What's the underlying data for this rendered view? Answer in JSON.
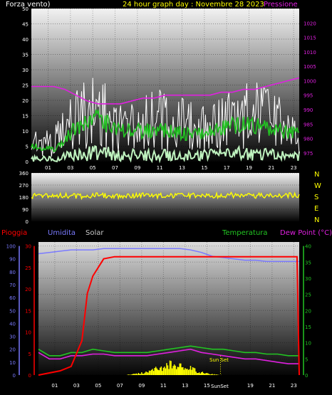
{
  "header": {
    "wind_label": "Forza vento)",
    "title": "24 hour graph day : Novembre 28 2023",
    "pressure_label": "Pressione"
  },
  "colors": {
    "wind_gust": "#ffffff",
    "wind_avg": "#22c522",
    "wind_min": "#bff3bf",
    "pressure": "#e020e0",
    "direction": "#ffff00",
    "rain": "#ff0000",
    "humidity": "#7a7aff",
    "solar": "#ffff00",
    "temperature": "#22c522",
    "dew_point": "#e020e0",
    "title": "#ffff00",
    "axis_text": "#ffffff"
  },
  "compass": [
    "N",
    "W",
    "S",
    "E",
    "N"
  ],
  "bottom_labels": {
    "rain": "Pioggia",
    "humidity": "Umidita",
    "solar": "Solar",
    "temperature": "Temperatura",
    "dew_point": "Dew Point (°C)",
    "sun_set": "Sun Set",
    "sun_set_axis": "SunSet"
  },
  "chart_data": [
    {
      "type": "line",
      "panel": "wind_pressure",
      "x_ticks": [
        "01",
        "03",
        "05",
        "07",
        "09",
        "11",
        "13",
        "15",
        "17",
        "19",
        "21",
        "23"
      ],
      "y_left_ticks": [
        "0",
        "5",
        "10",
        "15",
        "20",
        "25",
        "30",
        "35",
        "40",
        "45",
        "50"
      ],
      "y_left_range": [
        0,
        50
      ],
      "y_right_ticks": [
        "975",
        "980",
        "985",
        "990",
        "995",
        "1000",
        "1005",
        "1010",
        "1015",
        "1020"
      ],
      "y_right_range": [
        972,
        1025
      ],
      "series": [
        {
          "name": "Forza vento)",
          "role": "gust",
          "x": [
            0,
            2,
            4,
            6,
            8,
            10,
            12,
            14,
            16,
            18,
            20,
            22,
            24
          ],
          "values": [
            12,
            10,
            24,
            28,
            18,
            22,
            22,
            18,
            20,
            22,
            26,
            20,
            14
          ]
        },
        {
          "name": "",
          "role": "average",
          "x": [
            0,
            2,
            4,
            6,
            8,
            10,
            12,
            14,
            16,
            18,
            20,
            22,
            24
          ],
          "values": [
            5,
            4,
            11,
            14,
            10,
            10,
            10,
            9,
            10,
            12,
            12,
            10,
            9
          ]
        },
        {
          "name": "Pressione",
          "role": "pressure",
          "x": [
            0,
            1,
            2,
            3,
            4,
            5,
            6,
            7,
            8,
            9,
            10,
            11,
            12,
            13,
            14,
            15,
            16,
            17,
            18,
            19,
            20,
            21,
            22,
            23,
            24
          ],
          "values": [
            998,
            998,
            998,
            997,
            995,
            993,
            992,
            992,
            992,
            993,
            994,
            994,
            995,
            995,
            995,
            995,
            995,
            996,
            996,
            997,
            997,
            998,
            999,
            1000,
            1001
          ]
        }
      ]
    },
    {
      "type": "scatter",
      "panel": "wind_direction",
      "y_ticks": [
        "360",
        "270",
        "180",
        "90",
        "0"
      ],
      "y_range": [
        0,
        360
      ],
      "series": [
        {
          "name": "",
          "x": [
            0,
            2,
            4,
            6,
            8,
            10,
            12,
            14,
            16,
            18,
            20,
            22,
            24
          ],
          "values": [
            190,
            195,
            188,
            192,
            190,
            195,
            190,
            190,
            192,
            195,
            190,
            192,
            195
          ]
        }
      ]
    },
    {
      "type": "line",
      "panel": "rain_humidity_temp",
      "x_ticks": [
        "01",
        "03",
        "05",
        "07",
        "09",
        "11",
        "13",
        "15",
        "17",
        "19",
        "21",
        "23"
      ],
      "y_left_ticks": [
        "0",
        "5",
        "10",
        "15",
        "20",
        "25",
        "30"
      ],
      "y_far_left_ticks": [
        "0",
        "10",
        "20",
        "30",
        "40",
        "50",
        "60",
        "70",
        "80",
        "90",
        "100"
      ],
      "y_right_ticks": [
        "0",
        "5",
        "10",
        "15",
        "20",
        "25",
        "30",
        "35",
        "40"
      ],
      "y_right_range": [
        0,
        40
      ],
      "series": [
        {
          "name": "Pioggia",
          "x": [
            0,
            2,
            3,
            4,
            4.5,
            5,
            5.5,
            6,
            7,
            8,
            9,
            23.8,
            24
          ],
          "values": [
            0,
            1,
            2,
            8,
            19,
            23,
            25,
            27,
            27.5,
            27.5,
            27.5,
            27.5,
            0
          ]
        },
        {
          "name": "Umidita",
          "x": [
            0,
            1,
            2,
            3,
            4,
            5,
            6,
            7,
            8,
            9,
            10,
            11,
            12,
            13,
            14,
            15,
            16,
            17,
            18,
            19,
            20,
            21,
            22,
            23,
            24
          ],
          "values": [
            94,
            95,
            96,
            97,
            97,
            97,
            98,
            98,
            98,
            98,
            98,
            98,
            98,
            98,
            97,
            95,
            92,
            91,
            90,
            89,
            89,
            88,
            88,
            88,
            88
          ]
        },
        {
          "name": "Temperatura",
          "x": [
            0,
            1,
            2,
            3,
            4,
            5,
            6,
            7,
            8,
            9,
            10,
            11,
            12,
            13,
            14,
            15,
            16,
            17,
            18,
            19,
            20,
            21,
            22,
            23,
            24
          ],
          "values": [
            8,
            6,
            6,
            7,
            7,
            8,
            7.5,
            7,
            7,
            7,
            7,
            7.5,
            8,
            8.5,
            9,
            8.5,
            8,
            8,
            7.5,
            7,
            7,
            6.5,
            6.5,
            6,
            6
          ]
        },
        {
          "name": "Dew Point (°C)",
          "x": [
            0,
            1,
            2,
            3,
            4,
            5,
            6,
            7,
            8,
            9,
            10,
            11,
            12,
            13,
            14,
            15,
            16,
            17,
            18,
            19,
            20,
            21,
            22,
            23,
            24
          ],
          "values": [
            7,
            5,
            5,
            6,
            6,
            6.5,
            6.5,
            6,
            6,
            6,
            6,
            6.5,
            7,
            7.5,
            8,
            7,
            6.5,
            6,
            5.5,
            5,
            5,
            4.5,
            4,
            3.5,
            3.5
          ]
        },
        {
          "name": "Solar",
          "x": [
            0,
            6,
            7,
            8,
            9,
            10,
            11,
            12,
            13,
            14,
            15,
            16,
            17,
            24
          ],
          "values": [
            0,
            0,
            0,
            0,
            0.5,
            1,
            2.5,
            4,
            3.5,
            2.5,
            1,
            0.3,
            0,
            0
          ]
        }
      ]
    }
  ]
}
